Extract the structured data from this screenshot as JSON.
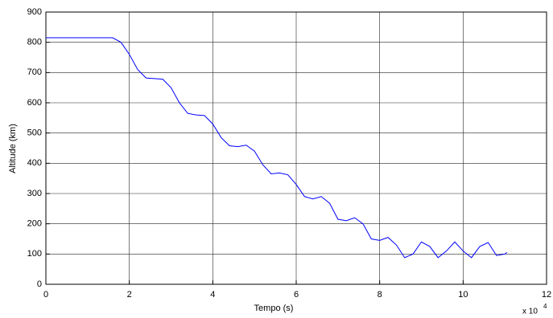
{
  "chart_data": {
    "type": "line",
    "x_label": "Tempo (s)",
    "y_label": "Altitude (km)",
    "x_scale_label": "x 10",
    "x_scale_exponent": "4",
    "x": [
      0,
      1.6,
      1.8,
      2.0,
      2.2,
      2.4,
      2.6,
      2.8,
      3.0,
      3.2,
      3.4,
      3.6,
      3.8,
      4.0,
      4.2,
      4.4,
      4.6,
      4.8,
      5.0,
      5.2,
      5.4,
      5.6,
      5.8,
      6.0,
      6.2,
      6.4,
      6.6,
      6.8,
      7.0,
      7.2,
      7.4,
      7.6,
      7.8,
      8.0,
      8.2,
      8.4,
      8.6,
      8.8,
      9.0,
      9.2,
      9.4,
      9.6,
      9.8,
      10.0,
      10.2,
      10.4,
      10.6,
      10.8,
      11.0,
      11.05
    ],
    "series": [
      {
        "name": "Altitude",
        "color": "#0000ff",
        "values": [
          815,
          815,
          800,
          760,
          710,
          682,
          680,
          678,
          650,
          600,
          565,
          560,
          558,
          530,
          485,
          458,
          455,
          460,
          440,
          395,
          365,
          368,
          362,
          330,
          290,
          282,
          290,
          268,
          215,
          210,
          220,
          200,
          150,
          145,
          155,
          130,
          88,
          100,
          140,
          125,
          88,
          110,
          140,
          110,
          88,
          125,
          138,
          95,
          100,
          105
        ]
      }
    ],
    "xlim": [
      0,
      12
    ],
    "xticks": [
      0,
      2,
      4,
      6,
      8,
      10,
      12
    ],
    "ylim": [
      0,
      900
    ],
    "yticks": [
      0,
      100,
      200,
      300,
      400,
      500,
      600,
      700,
      800,
      900
    ],
    "grid": true,
    "legend": false
  }
}
